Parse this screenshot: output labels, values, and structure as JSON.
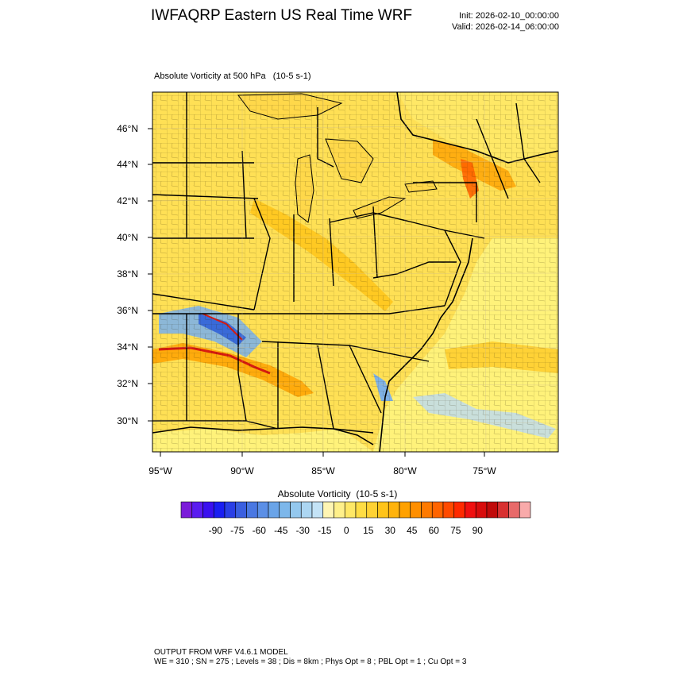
{
  "header": {
    "title": "IWFAQRP Eastern US Real Time WRF",
    "init": "Init: 2026-02-10_00:00:00",
    "valid": "Valid: 2026-02-14_06:00:00"
  },
  "map": {
    "subtitle": "Absolute Vorticity at 500 hPa   (10-5 s-1)",
    "lat_labels": [
      "46°N",
      "44°N",
      "42°N",
      "40°N",
      "38°N",
      "36°N",
      "34°N",
      "32°N",
      "30°N"
    ],
    "lon_labels": [
      "95°W",
      "90°W",
      "85°W",
      "80°W",
      "75°W"
    ],
    "colors": {
      "background": "#ffe055",
      "ocean": "#fff27a",
      "high_band": "#f5a623",
      "max_band": "#d81b10",
      "negative": "#7fb2e6",
      "strong_negative": "#2a5dd8"
    }
  },
  "colorbar": {
    "title": "Absolute Vorticity  (10-5 s-1)",
    "tick_labels": [
      "-90",
      "-75",
      "-60",
      "-45",
      "-30",
      "-15",
      "0",
      "15",
      "30",
      "45",
      "60",
      "75",
      "90"
    ],
    "colors": [
      "#7b1cd9",
      "#5a1cf0",
      "#3a10f0",
      "#1a1ef2",
      "#2a3fe6",
      "#3a5fe0",
      "#4a78e2",
      "#5b8fe6",
      "#6aa4e8",
      "#7db7ea",
      "#94c8ee",
      "#acd6f2",
      "#c4e3f6",
      "#fff5b3",
      "#fff08a",
      "#ffe866",
      "#ffdd44",
      "#ffd233",
      "#ffc41a",
      "#ffb30d",
      "#ffa100",
      "#ff8f00",
      "#ff7a00",
      "#ff6400",
      "#ff4a00",
      "#ff2a00",
      "#f01010",
      "#d80c0c",
      "#c00a0a",
      "#d83030",
      "#e86a6a",
      "#f8aaaa"
    ]
  },
  "footer": {
    "line1": "OUTPUT FROM WRF V4.6.1 MODEL",
    "line2": "WE = 310 ; SN = 275 ; Levels = 38 ; Dis = 8km ; Phys Opt = 8 ; PBL Opt = 1 ; Cu Opt = 3"
  }
}
